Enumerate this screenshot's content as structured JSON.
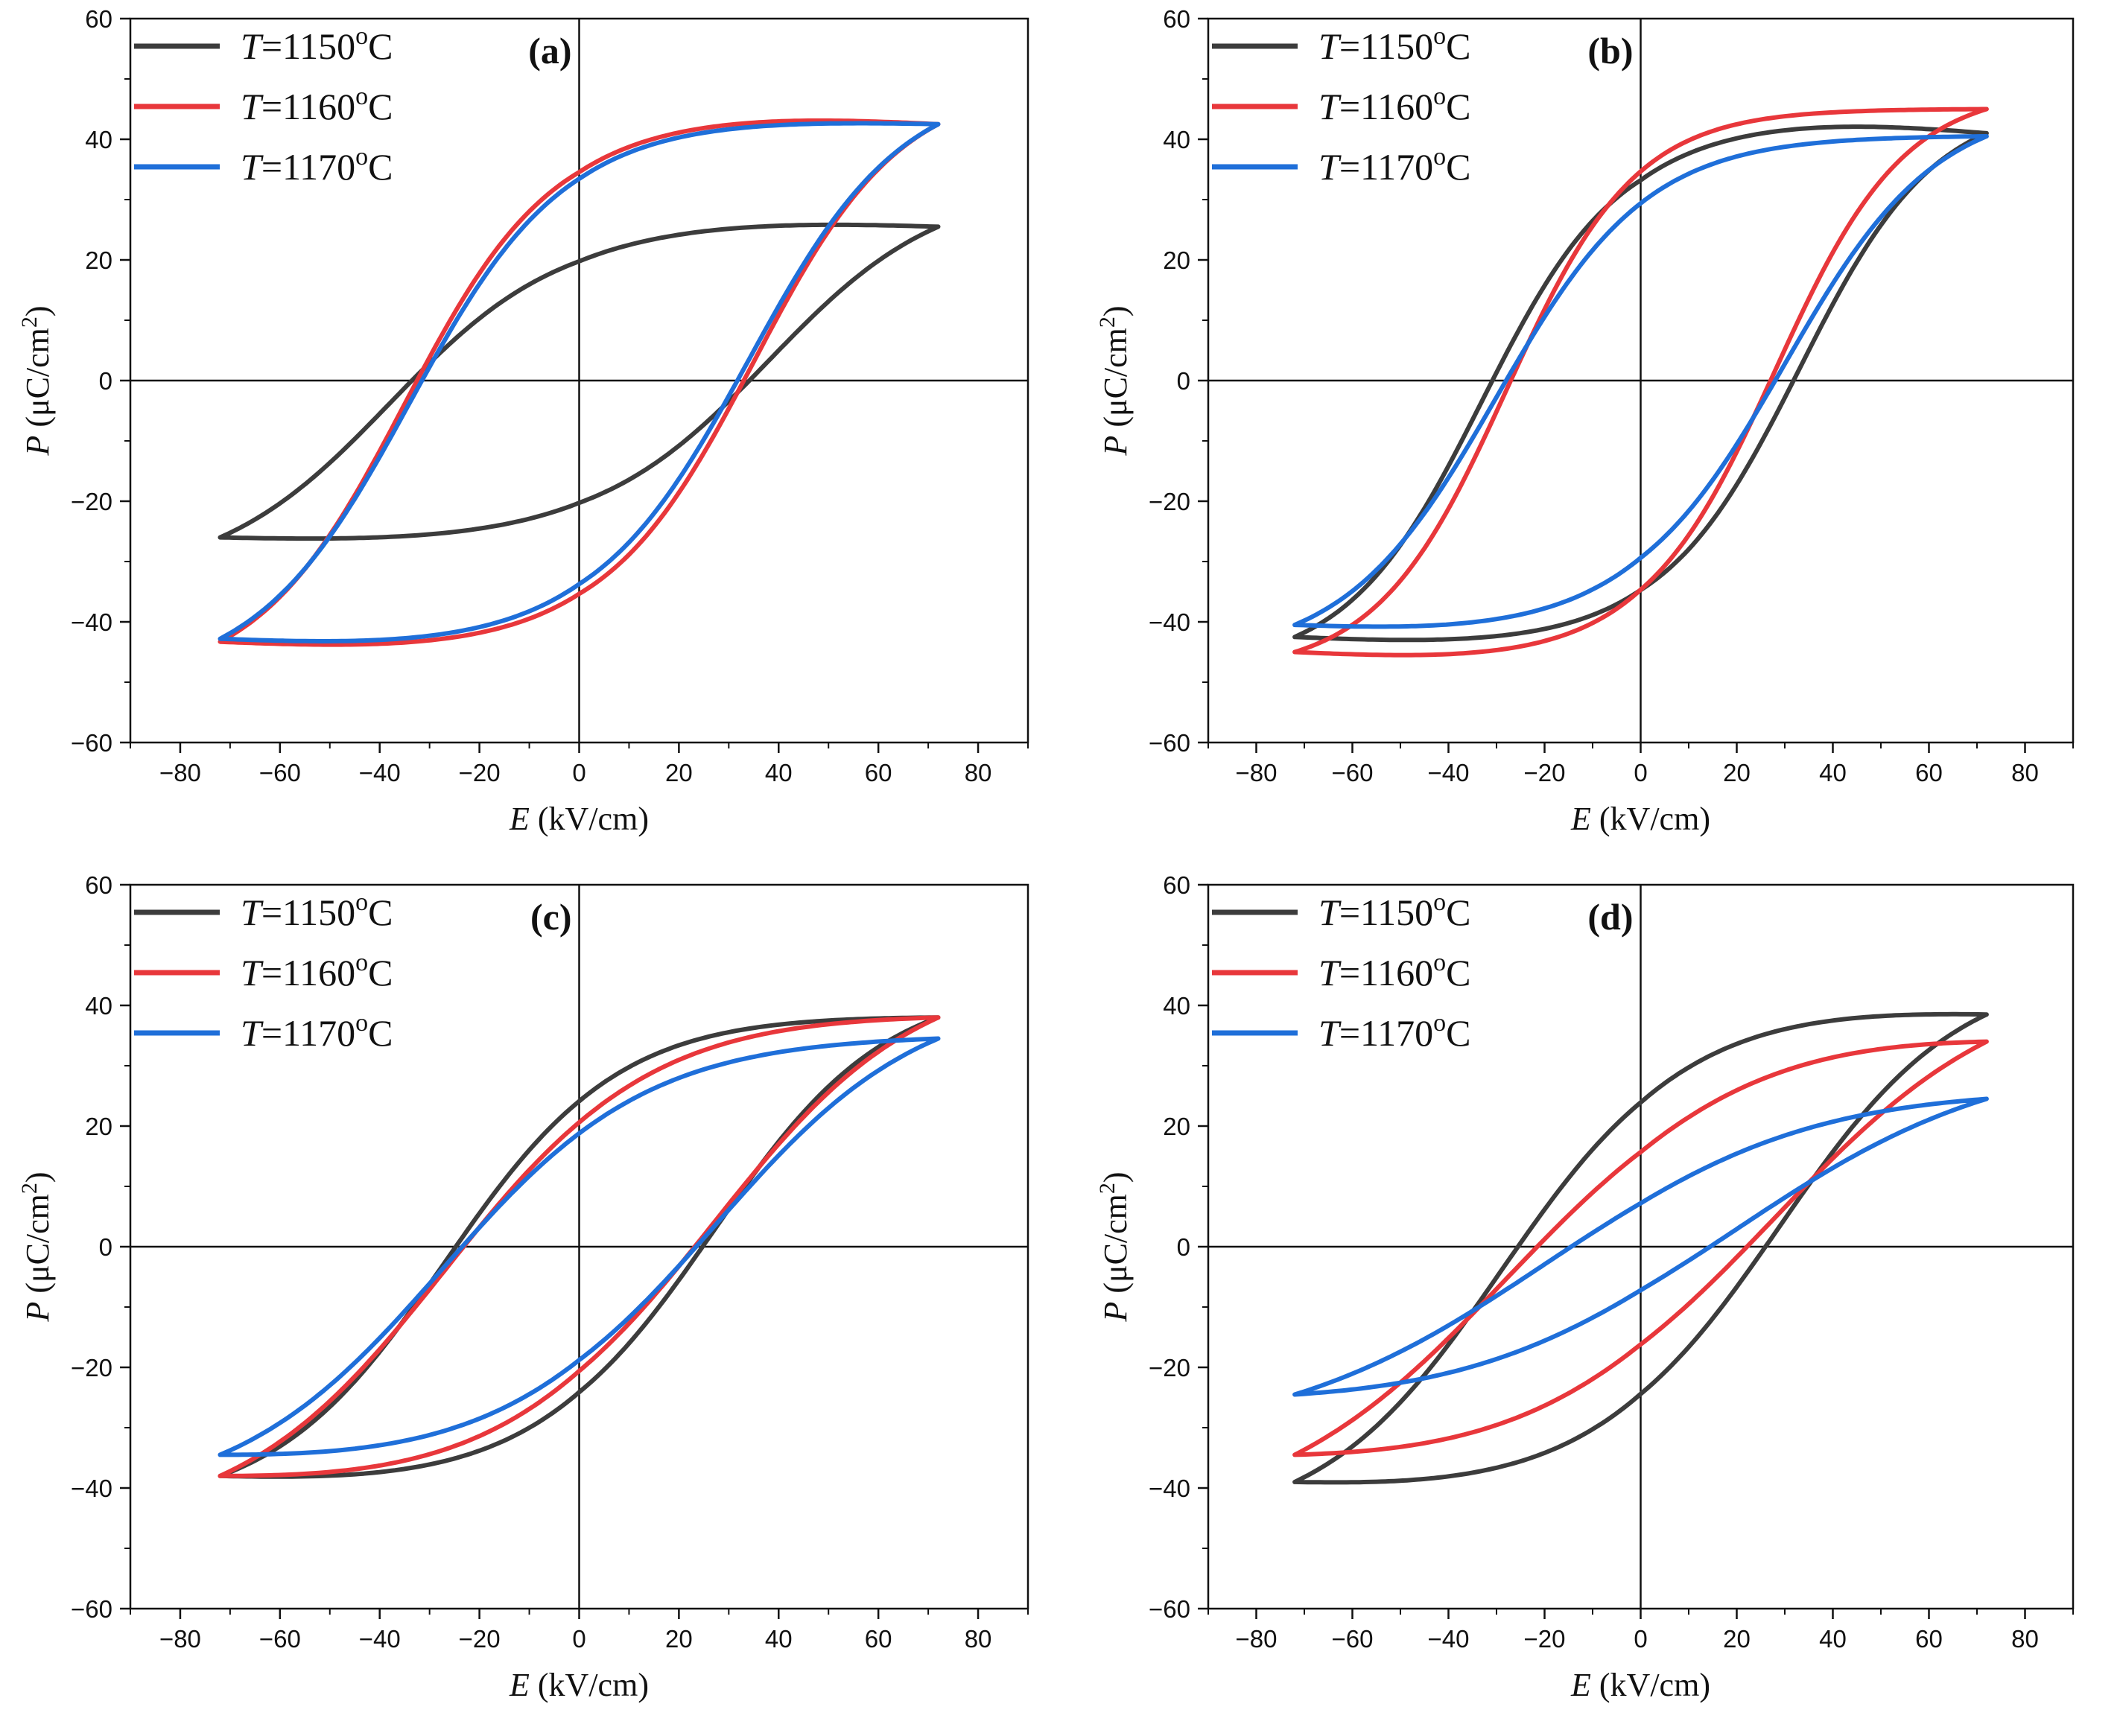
{
  "figure": {
    "colors": {
      "1150": "#3c3c3c",
      "1160": "#e8373b",
      "1170": "#1f6fd9"
    },
    "legend": [
      {
        "key": "1150",
        "prefix": "T",
        "label": "=1150",
        "sup": "o",
        "unit": "C"
      },
      {
        "key": "1160",
        "prefix": "T",
        "label": "=1160",
        "sup": "o",
        "unit": "C"
      },
      {
        "key": "1170",
        "prefix": "T",
        "label": "=1170",
        "sup": "o",
        "unit": "C"
      }
    ],
    "xlabel": {
      "var": "E",
      "unit": " (kV/cm)"
    },
    "ylabel": {
      "var": "P",
      "unit_pre": " (μC/cm",
      "unit_sup": "2",
      "unit_post": ")"
    }
  },
  "chart_data": [
    {
      "type": "line",
      "panel": "(a)",
      "xlim": [
        -90,
        90
      ],
      "ylim": [
        -60,
        60
      ],
      "xticks": [
        -80,
        -60,
        -40,
        -20,
        0,
        20,
        40,
        60,
        80
      ],
      "yticks": [
        -60,
        -40,
        -20,
        0,
        20,
        40,
        60
      ],
      "series": [
        {
          "key": "1150",
          "Ps": 25.5,
          "Pmin": -26,
          "Pr": 21,
          "Ec": 38,
          "k": 3.9,
          "Ppeak": 26.2
        },
        {
          "key": "1160",
          "Ps": 42.5,
          "Pmin": -43.3,
          "Pr": 36,
          "Ec": 35,
          "k": 2.7,
          "Ppeak": 43.5
        },
        {
          "key": "1170",
          "Ps": 42.5,
          "Pmin": -42.8,
          "Pr": 34.5,
          "Ec": 34,
          "k": 3.0,
          "Ppeak": 43
        }
      ]
    },
    {
      "type": "line",
      "panel": "(b)",
      "xlim": [
        -90,
        90
      ],
      "ylim": [
        -60,
        60
      ],
      "xticks": [
        -80,
        -60,
        -40,
        -20,
        0,
        20,
        40,
        60,
        80
      ],
      "yticks": [
        -60,
        -40,
        -20,
        0,
        20,
        40,
        60
      ],
      "series": [
        {
          "key": "1150",
          "Ps": 41,
          "Pmin": -42.5,
          "Pr": 35,
          "Ec": 33,
          "k": 3.0,
          "Ppeak": 42.5
        },
        {
          "key": "1160",
          "Ps": 45,
          "Pmin": -45,
          "Pr": 35,
          "Ec": 28,
          "k": 2.9,
          "Ppeak": 45
        },
        {
          "key": "1170",
          "Ps": 40.5,
          "Pmin": -40.5,
          "Pr": 30,
          "Ec": 30,
          "k": 3.2,
          "Ppeak": 40.5
        }
      ]
    },
    {
      "type": "line",
      "panel": "(c)",
      "xlim": [
        -90,
        90
      ],
      "ylim": [
        -60,
        60
      ],
      "xticks": [
        -80,
        -60,
        -40,
        -20,
        0,
        20,
        40,
        60,
        80
      ],
      "yticks": [
        -60,
        -40,
        -20,
        0,
        20,
        40,
        60
      ],
      "series": [
        {
          "key": "1150",
          "Ps": 38,
          "Pmin": -38,
          "Pr": 25,
          "Ec": 27,
          "k": 3.2,
          "Ppeak": 38.2
        },
        {
          "key": "1160",
          "Ps": 38,
          "Pmin": -38,
          "Pr": 22,
          "Ec": 27,
          "k": 3.2,
          "Ppeak": 38.2
        },
        {
          "key": "1170",
          "Ps": 34.5,
          "Pmin": -34.5,
          "Pr": 20,
          "Ec": 27.5,
          "k": 3.4,
          "Ppeak": 34.5
        }
      ]
    },
    {
      "type": "line",
      "panel": "(d)",
      "xlim": [
        -90,
        90
      ],
      "ylim": [
        -60,
        60
      ],
      "xticks": [
        -80,
        -60,
        -40,
        -20,
        0,
        20,
        40,
        60,
        80
      ],
      "yticks": [
        -60,
        -40,
        -20,
        0,
        20,
        40,
        60
      ],
      "series": [
        {
          "key": "1150",
          "Ps": 38.5,
          "Pmin": -39,
          "Pr": 25.5,
          "Ec": 29,
          "k": 3.4,
          "Ppeak": 39.2
        },
        {
          "key": "1160",
          "Ps": 34,
          "Pmin": -34.5,
          "Pr": 18,
          "Ec": 28,
          "k": 3.8,
          "Ppeak": 34.8
        },
        {
          "key": "1170",
          "Ps": 24.5,
          "Pmin": -24.5,
          "Pr": 8.5,
          "Ec": 20,
          "k": 6.0,
          "Ppeak": 24.8
        }
      ]
    }
  ]
}
